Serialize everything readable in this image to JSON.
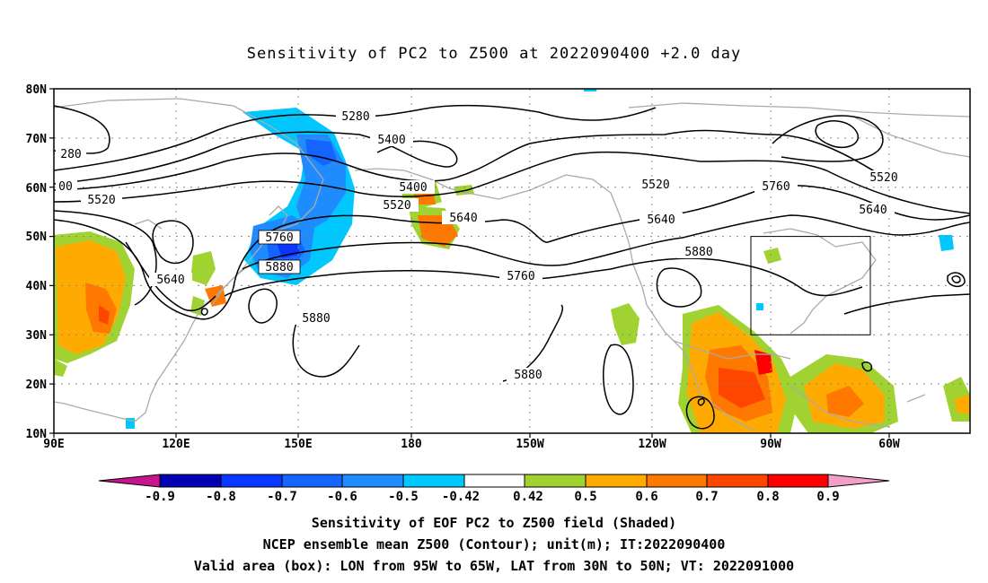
{
  "title": "Sensitivity of PC2 to Z500 at 2022090400 +2.0 day",
  "lat_labels": [
    "80N",
    "70N",
    "60N",
    "50N",
    "40N",
    "30N",
    "20N",
    "10N"
  ],
  "lon_labels": [
    "90E",
    "120E",
    "150E",
    "180",
    "150W",
    "120W",
    "90W",
    "60W"
  ],
  "contour_labels": [
    "5280",
    "5400",
    "280",
    "00",
    "5520",
    "5400",
    "5520",
    "5640",
    "5520",
    "5760",
    "5520",
    "5640",
    "5640",
    "5760",
    "5880",
    "5640",
    "5880",
    "5880",
    "5760",
    "5880"
  ],
  "colorbar": {
    "labels": [
      "-0.9",
      "-0.8",
      "-0.7",
      "-0.6",
      "-0.5",
      "-0.42",
      "0.42",
      "0.5",
      "0.6",
      "0.7",
      "0.8",
      "0.9"
    ],
    "colors": [
      "#0000b4",
      "#0a37ff",
      "#1464ff",
      "#1e8cff",
      "#00c8ff",
      "#ffffff",
      "#a0d232",
      "#ffaa00",
      "#ff7800",
      "#ff4600",
      "#ff0000"
    ],
    "low_end_color": "#c8148c",
    "high_end_color": "#f59ec8"
  },
  "captions": [
    "Sensitivity of EOF PC2 to Z500 field (Shaded)",
    "NCEP ensemble mean Z500 (Contour); unit(m); IT:2022090400",
    "Valid area (box): LON from 95W to 65W, LAT from 30N to 50N; VT: 2022091000"
  ],
  "valid_box": {
    "lon_min": "95W",
    "lon_max": "65W",
    "lat_min": "30N",
    "lat_max": "50N"
  }
}
